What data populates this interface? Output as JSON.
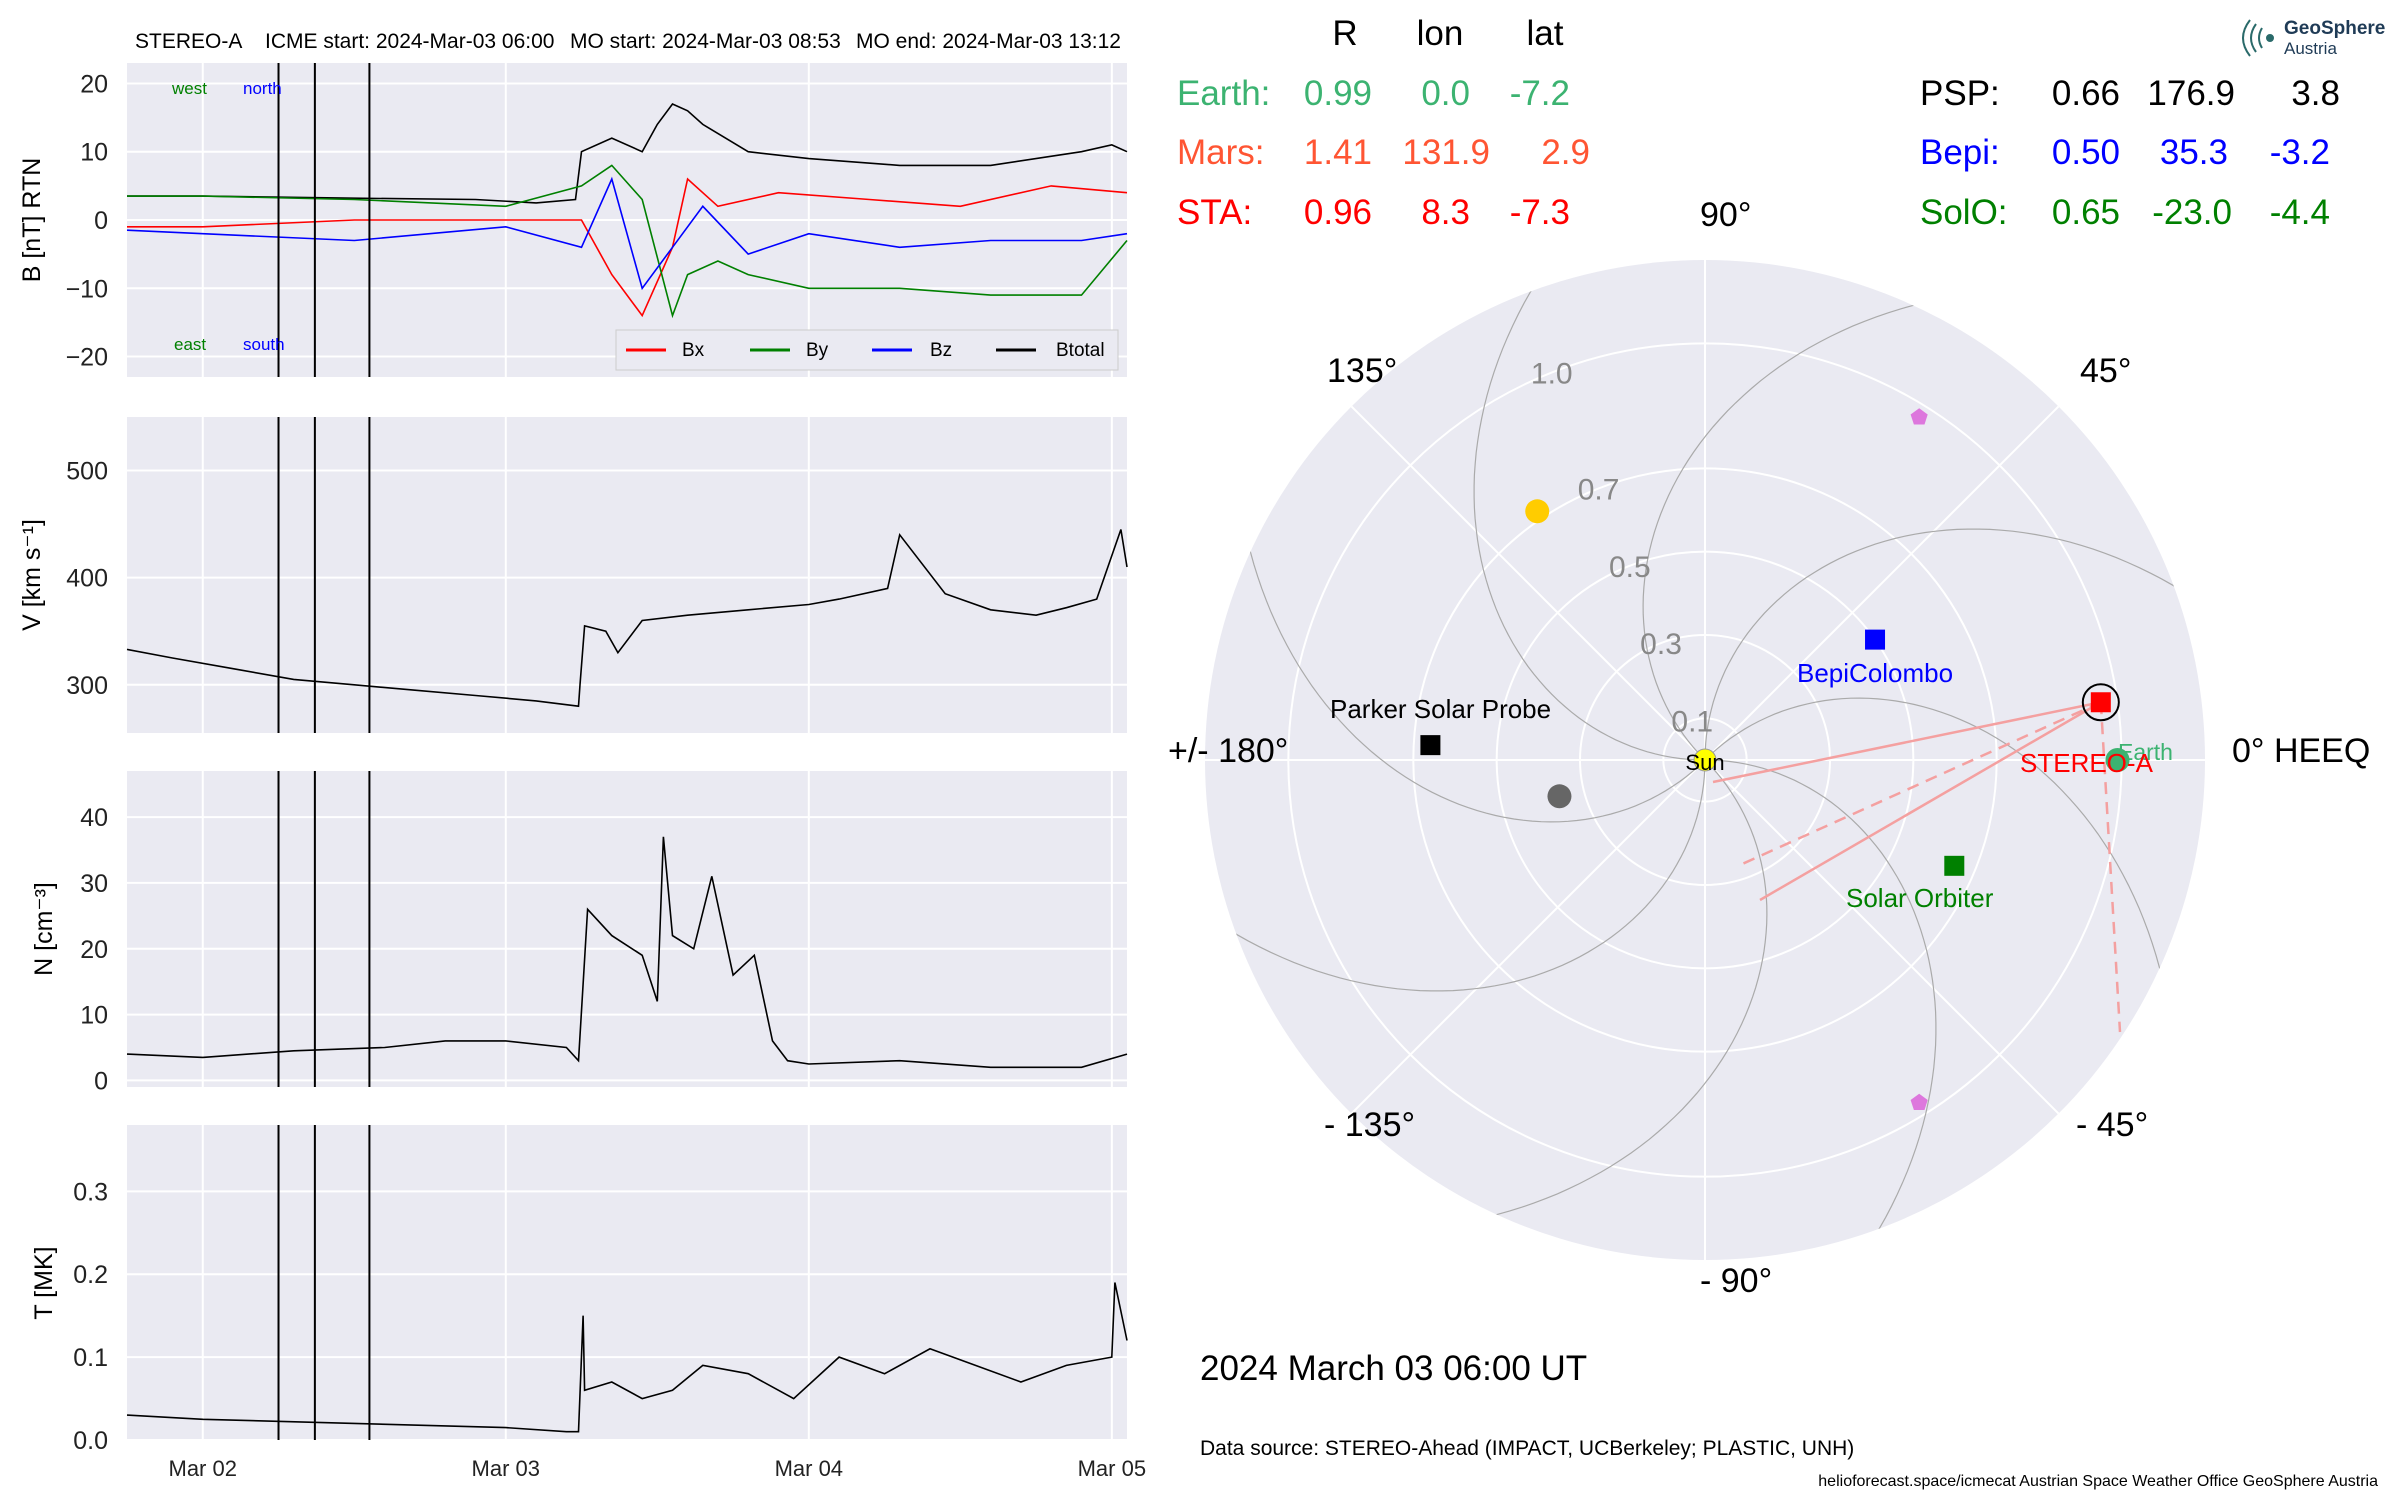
{
  "header": {
    "spacecraft": "STEREO-A",
    "icme_start": "ICME start: 2024-Mar-03 06:00",
    "mo_start": "MO start: 2024-Mar-03 08:53",
    "mo_end": "MO end: 2024-Mar-03 13:12"
  },
  "colors": {
    "panel_bg": "#eaeaf2",
    "grid": "#ffffff",
    "bx": "#ff0000",
    "by": "#008000",
    "bz": "#0000ff",
    "btotal": "#000000",
    "earth": "#3cb371",
    "mars": "#ff5533",
    "sta": "#ff0000",
    "bepi": "#0000ff",
    "solo": "#008000",
    "psp": "#000000",
    "sun": "#ffff00",
    "venus": "#ffcc00",
    "mercury": "#666666",
    "comet": "#dd77dd"
  },
  "bfield_labels": {
    "west": "west",
    "north": "north",
    "east": "east",
    "south": "south"
  },
  "event_marks": {
    "description_days": [
      2.25,
      2.37,
      2.55
    ]
  },
  "chart_data": [
    {
      "type": "line",
      "ylabel": "B [nT] RTN",
      "ylim": [
        -23,
        23
      ],
      "yticks": [
        "20",
        "10",
        "0",
        "−10",
        "−20"
      ],
      "ytick_values": [
        20,
        10,
        0,
        -10,
        -20
      ],
      "x_unit": "day of March 2024",
      "xlim": [
        1.75,
        5.05
      ],
      "xtick_values": [
        2,
        3,
        4,
        5
      ],
      "xtick_labels": [
        "Mar 02",
        "Mar 03",
        "Mar 04",
        "Mar 05"
      ],
      "legend": {
        "placement": "lower-right",
        "entries": [
          "Bx",
          "By",
          "Bz",
          "Btotal"
        ]
      },
      "series": [
        {
          "name": "Btotal",
          "key": "btotal",
          "x": [
            1.75,
            2.0,
            2.5,
            2.9,
            3.1,
            3.23,
            3.25,
            3.35,
            3.45,
            3.5,
            3.55,
            3.6,
            3.65,
            3.8,
            4.0,
            4.3,
            4.6,
            4.9,
            5.0,
            5.05
          ],
          "y": [
            3.5,
            3.5,
            3.2,
            3.0,
            2.5,
            3.0,
            10,
            12,
            10,
            14,
            17,
            16,
            14,
            10,
            9,
            8,
            8,
            10,
            11,
            10
          ]
        },
        {
          "name": "Bx",
          "key": "bx",
          "x": [
            1.75,
            2.0,
            2.5,
            3.0,
            3.25,
            3.35,
            3.45,
            3.55,
            3.6,
            3.7,
            3.9,
            4.2,
            4.5,
            4.8,
            5.05
          ],
          "y": [
            -1,
            -1,
            0,
            0,
            0,
            -8,
            -14,
            -4,
            6,
            2,
            4,
            3,
            2,
            5,
            4
          ]
        },
        {
          "name": "By",
          "key": "by",
          "x": [
            1.75,
            2.0,
            2.5,
            3.0,
            3.25,
            3.35,
            3.45,
            3.55,
            3.6,
            3.7,
            3.8,
            4.0,
            4.3,
            4.6,
            4.9,
            5.05
          ],
          "y": [
            3.5,
            3.5,
            3,
            2,
            5,
            8,
            3,
            -14,
            -8,
            -6,
            -8,
            -10,
            -10,
            -11,
            -11,
            -3
          ]
        },
        {
          "name": "Bz",
          "key": "bz",
          "x": [
            1.75,
            2.0,
            2.5,
            3.0,
            3.25,
            3.35,
            3.45,
            3.55,
            3.65,
            3.8,
            4.0,
            4.3,
            4.6,
            4.9,
            5.05
          ],
          "y": [
            -1.5,
            -2,
            -3,
            -1,
            -4,
            6,
            -10,
            -4,
            2,
            -5,
            -2,
            -4,
            -3,
            -3,
            -2
          ]
        }
      ]
    },
    {
      "type": "line",
      "ylabel": "V [km s⁻¹]",
      "ylim": [
        255,
        550
      ],
      "ytick_values": [
        500,
        400,
        300
      ],
      "yticks": [
        "500",
        "400",
        "300"
      ],
      "xlim": [
        1.75,
        5.05
      ],
      "series": [
        {
          "key": "btotal",
          "x": [
            1.75,
            1.9,
            2.1,
            2.3,
            2.5,
            2.7,
            2.9,
            3.1,
            3.24,
            3.245,
            3.26,
            3.33,
            3.37,
            3.45,
            3.6,
            3.8,
            4.0,
            4.1,
            4.26,
            4.3,
            4.45,
            4.6,
            4.75,
            4.85,
            4.95,
            5.03,
            5.05
          ],
          "y": [
            333,
            325,
            315,
            305,
            300,
            295,
            290,
            285,
            280,
            300,
            355,
            350,
            330,
            360,
            365,
            370,
            375,
            380,
            390,
            440,
            385,
            370,
            365,
            372,
            380,
            445,
            410
          ]
        }
      ]
    },
    {
      "type": "line",
      "ylabel": "N [cm⁻³]",
      "ylim": [
        -1,
        47
      ],
      "ytick_values": [
        40,
        30,
        20,
        10,
        0
      ],
      "yticks": [
        "40",
        "30",
        "20",
        "10",
        "0"
      ],
      "xlim": [
        1.75,
        5.05
      ],
      "series": [
        {
          "key": "btotal",
          "x": [
            1.75,
            2.0,
            2.3,
            2.6,
            2.8,
            3.0,
            3.2,
            3.24,
            3.27,
            3.35,
            3.45,
            3.5,
            3.52,
            3.55,
            3.62,
            3.68,
            3.75,
            3.82,
            3.88,
            3.93,
            4.0,
            4.3,
            4.6,
            4.9,
            5.05
          ],
          "y": [
            4,
            3.5,
            4.5,
            5,
            6,
            6,
            5,
            3,
            26,
            22,
            19,
            12,
            37,
            22,
            20,
            31,
            16,
            19,
            6,
            3,
            2.5,
            3,
            2,
            2,
            4
          ]
        }
      ]
    },
    {
      "type": "line",
      "ylabel": "T [MK]",
      "ylim": [
        0,
        0.38
      ],
      "ytick_values": [
        0.3,
        0.2,
        0.1,
        0.0
      ],
      "yticks": [
        "0.3",
        "0.2",
        "0.1",
        "0.0"
      ],
      "xlim": [
        1.75,
        5.05
      ],
      "series": [
        {
          "key": "btotal",
          "x": [
            1.75,
            2.0,
            2.5,
            3.0,
            3.2,
            3.24,
            3.255,
            3.26,
            3.35,
            3.45,
            3.55,
            3.65,
            3.8,
            3.95,
            4.1,
            4.25,
            4.4,
            4.55,
            4.7,
            4.85,
            5.0,
            5.01,
            5.05
          ],
          "y": [
            0.03,
            0.025,
            0.02,
            0.015,
            0.01,
            0.01,
            0.15,
            0.06,
            0.07,
            0.05,
            0.06,
            0.09,
            0.08,
            0.05,
            0.1,
            0.08,
            0.11,
            0.09,
            0.07,
            0.09,
            0.1,
            0.19,
            0.12
          ]
        }
      ]
    }
  ],
  "position_table": {
    "headers": [
      "R",
      "lon",
      "lat"
    ],
    "rows_left": [
      {
        "name": "Earth:",
        "r": "0.99",
        "lon": "0.0",
        "lat": "-7.2",
        "color": "earth"
      },
      {
        "name": "Mars:",
        "r": "1.41",
        "lon": "131.9",
        "lat": "2.9",
        "color": "mars"
      },
      {
        "name": "STA:",
        "r": "0.96",
        "lon": "8.3",
        "lat": "-7.3",
        "color": "sta"
      }
    ],
    "rows_right": [
      {
        "name": "PSP:",
        "r": "0.66",
        "lon": "176.9",
        "lat": "3.8",
        "color": "psp"
      },
      {
        "name": "Bepi:",
        "r": "0.50",
        "lon": "35.3",
        "lat": "-3.2",
        "color": "bepi"
      },
      {
        "name": "SolO:",
        "r": "0.65",
        "lon": "-23.0",
        "lat": "-4.4",
        "color": "solo"
      }
    ]
  },
  "polar": {
    "angle_labels": {
      "a0": "0° HEEQ",
      "a45": "45°",
      "a90": "90°",
      "a135": "135°",
      "a180": "+/- 180°",
      "am135": "- 135°",
      "am90": "- 90°",
      "am45": "- 45°"
    },
    "radial_ticks": [
      "0.1",
      "0.3",
      "0.5",
      "0.7",
      "1.0"
    ],
    "radial_values": [
      0.1,
      0.3,
      0.5,
      0.7,
      1.0
    ],
    "rmax": 1.2,
    "objects": [
      {
        "name": "Sun",
        "r": 0,
        "lon": 0,
        "marker": "circle",
        "color": "sun"
      },
      {
        "name": "Earth",
        "r": 0.99,
        "lon": 0.0,
        "marker": "circle",
        "color": "earth"
      },
      {
        "name": "STEREO-A",
        "r": 0.96,
        "lon": 8.3,
        "marker": "square",
        "color": "sta"
      },
      {
        "name": "BepiColombo",
        "r": 0.5,
        "lon": 35.3,
        "marker": "square",
        "color": "bepi"
      },
      {
        "name": "Solar Orbiter",
        "r": 0.65,
        "lon": -23.0,
        "marker": "square",
        "color": "solo"
      },
      {
        "name": "Parker Solar Probe",
        "r": 0.66,
        "lon": 176.9,
        "marker": "square",
        "color": "psp"
      },
      {
        "name": "",
        "r": 0.72,
        "lon": 124,
        "marker": "circle",
        "color": "venus"
      },
      {
        "name": "",
        "r": 0.36,
        "lon": 194,
        "marker": "circle",
        "color": "mercury"
      },
      {
        "name": "",
        "r": 0.97,
        "lon": 58,
        "marker": "pentagon",
        "color": "comet"
      },
      {
        "name": "",
        "r": 0.97,
        "lon": -58,
        "marker": "pentagon",
        "color": "comet"
      }
    ],
    "label_sun": "Sun",
    "label_earth": "Earth",
    "label_sta": "STEREO-A",
    "label_bepi": "BepiColombo",
    "label_solo": "Solar Orbiter",
    "label_psp": "Parker Solar Probe"
  },
  "footer": {
    "datetime": "2024 March 03  06:00 UT",
    "source": "Data source: STEREO-Ahead (IMPACT, UCBerkeley; PLASTIC, UNH)",
    "credits": "helioforecast.space/icmecat   Austrian Space Weather Office   GeoSphere Austria"
  },
  "logo": {
    "line1": "GeoSphere",
    "line2": "Austria"
  }
}
